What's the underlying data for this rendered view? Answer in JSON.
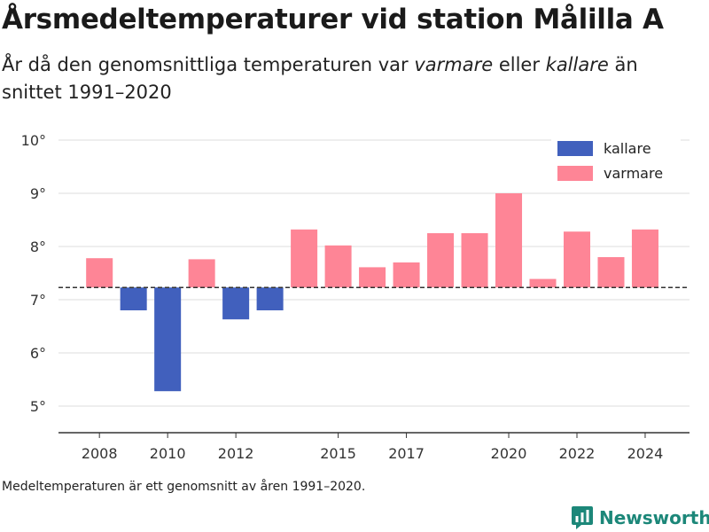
{
  "title": "Årsmedeltemperaturer vid station Målilla A",
  "subtitle": {
    "part1": "År då den genomsnittliga temperaturen var ",
    "warm_word": "varmare",
    "part2": " eller ",
    "cold_word": "kallare",
    "part3": " än snittet 1991–2020"
  },
  "footnote": "Medeltemperaturen är ett genomsnitt av åren 1991–2020.",
  "brand": {
    "name": "Newsworthy",
    "icon": "newsworthy-logo-icon"
  },
  "colors": {
    "warmer": "#fe8596",
    "colder": "#4160bd",
    "grid": "#dcdcdc",
    "axis": "#333333",
    "baseline": "#333333",
    "brand": "#1c8779"
  },
  "chart_data": {
    "type": "bar",
    "baseline": 7.23,
    "baseline_style": "dashed",
    "ylim": [
      4.5,
      10.3
    ],
    "yticks": [
      5,
      6,
      7,
      8,
      9,
      10
    ],
    "ytick_labels": [
      "5°",
      "6°",
      "7°",
      "8°",
      "9°",
      "10°"
    ],
    "xlim": [
      2006.8,
      2025.3
    ],
    "xticks": [
      2008,
      2010,
      2012,
      2015,
      2017,
      2020,
      2022,
      2024
    ],
    "xtick_labels": [
      "2008",
      "2010",
      "2012",
      "2015",
      "2017",
      "2020",
      "2022",
      "2024"
    ],
    "grid": true,
    "legend": {
      "placement": "top-right",
      "entries": [
        {
          "label": "kallare",
          "key": "colder"
        },
        {
          "label": "varmare",
          "key": "warmer"
        }
      ]
    },
    "series": [
      {
        "name": "kallare",
        "key": "colder",
        "years": [
          2009,
          2010,
          2012,
          2013
        ],
        "values": [
          6.8,
          5.28,
          6.63,
          6.8
        ]
      },
      {
        "name": "varmare",
        "key": "warmer",
        "years": [
          2008,
          2011,
          2014,
          2015,
          2016,
          2017,
          2018,
          2019,
          2020,
          2021,
          2022,
          2023,
          2024
        ],
        "values": [
          7.78,
          7.76,
          8.32,
          8.02,
          7.61,
          7.7,
          8.25,
          8.25,
          9.0,
          7.39,
          8.28,
          7.8,
          8.32
        ]
      }
    ]
  }
}
